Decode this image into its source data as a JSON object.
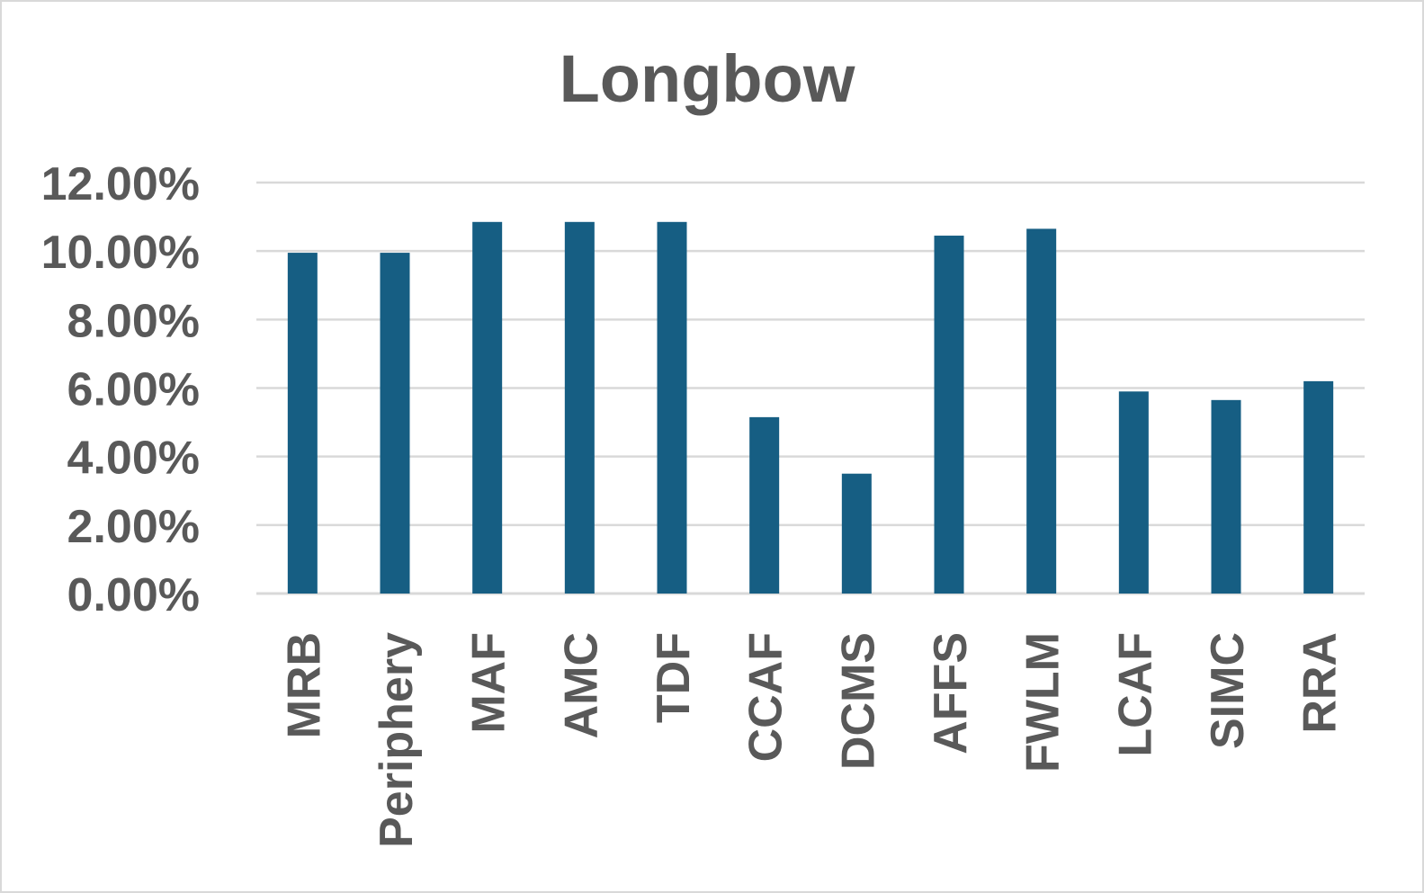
{
  "chart_data": {
    "type": "bar",
    "title": "Longbow",
    "xlabel": "",
    "ylabel": "",
    "categories": [
      "MRB",
      "Periphery",
      "MAF",
      "AMC",
      "TDF",
      "CCAF",
      "DCMS",
      "AFFS",
      "FWLM",
      "LCAF",
      "SIMC",
      "RRA"
    ],
    "values": [
      0.0995,
      0.0995,
      0.1085,
      0.1085,
      0.1085,
      0.0515,
      0.035,
      0.1045,
      0.1065,
      0.059,
      0.0565,
      0.062
    ],
    "ylim": [
      0,
      0.12
    ],
    "yticks": [
      0,
      0.02,
      0.04,
      0.06,
      0.08,
      0.1,
      0.12
    ],
    "ytick_labels": [
      "0.00%",
      "2.00%",
      "4.00%",
      "6.00%",
      "8.00%",
      "10.00%",
      "12.00%"
    ],
    "grid": true,
    "legend": "none",
    "bar_color": "#165e83"
  }
}
